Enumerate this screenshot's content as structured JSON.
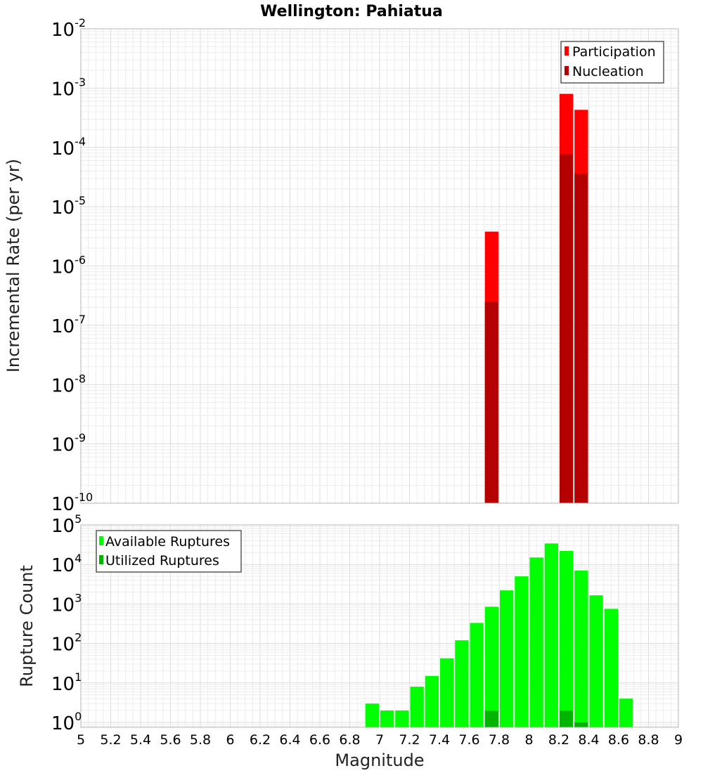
{
  "figure": {
    "title": "Wellington: Pahiatua",
    "xlabel": "Magnitude"
  },
  "chart_data": [
    {
      "type": "bar",
      "panel": "top",
      "ylabel": "Incremental Rate (per yr)",
      "xlim": [
        5,
        9
      ],
      "ylim": [
        1e-10,
        0.01
      ],
      "yscale": "log",
      "grid": true,
      "legend_position": "top-right",
      "bin_width": 0.1,
      "series": [
        {
          "name": "Participation",
          "color": "#ff0000",
          "x": [
            7.75,
            8.25,
            8.35
          ],
          "values": [
            3.8e-06,
            0.0008,
            0.00043
          ]
        },
        {
          "name": "Nucleation",
          "color": "#b40000",
          "x": [
            7.75,
            8.25,
            8.35
          ],
          "values": [
            2.5e-07,
            7.7e-05,
            3.6e-05
          ]
        }
      ],
      "xticks": [
        "5",
        "5.2",
        "5.4",
        "5.6",
        "5.8",
        "6",
        "6.2",
        "6.4",
        "6.6",
        "6.8",
        "7",
        "7.2",
        "7.4",
        "7.6",
        "7.8",
        "8",
        "8.2",
        "8.4",
        "8.6",
        "8.8",
        "9"
      ],
      "yticks": [
        {
          "base": "10",
          "exp": "-2",
          "value": 0.01
        },
        {
          "base": "10",
          "exp": "-3",
          "value": 0.001
        },
        {
          "base": "10",
          "exp": "-4",
          "value": 0.0001
        },
        {
          "base": "10",
          "exp": "-5",
          "value": 1e-05
        },
        {
          "base": "10",
          "exp": "-6",
          "value": 1e-06
        },
        {
          "base": "10",
          "exp": "-7",
          "value": 1e-07
        },
        {
          "base": "10",
          "exp": "-8",
          "value": 1e-08
        },
        {
          "base": "10",
          "exp": "-9",
          "value": 1e-09
        },
        {
          "base": "10",
          "exp": "-10",
          "value": 1e-10
        }
      ]
    },
    {
      "type": "bar",
      "panel": "bottom",
      "ylabel": "Rupture Count",
      "xlabel": "Magnitude",
      "xlim": [
        5,
        9
      ],
      "ylim": [
        0.75,
        100000.0
      ],
      "yscale": "log",
      "grid": true,
      "legend_position": "top-left",
      "bin_width": 0.1,
      "series": [
        {
          "name": "Available Ruptures",
          "color": "#00ff00",
          "x": [
            6.95,
            7.05,
            7.15,
            7.25,
            7.35,
            7.45,
            7.55,
            7.65,
            7.75,
            7.85,
            7.95,
            8.05,
            8.15,
            8.25,
            8.35,
            8.45,
            8.55,
            8.65
          ],
          "values": [
            3,
            2,
            2,
            8,
            15,
            42,
            120,
            330,
            850,
            2200,
            5000,
            15000,
            34000,
            22000,
            7000,
            1650,
            750,
            4
          ]
        },
        {
          "name": "Utilized Ruptures",
          "color": "#00b400",
          "x": [
            7.75,
            8.25,
            8.35
          ],
          "values": [
            2,
            2,
            1
          ]
        }
      ],
      "xticks": [
        "5",
        "5.2",
        "5.4",
        "5.6",
        "5.8",
        "6",
        "6.2",
        "6.4",
        "6.6",
        "6.8",
        "7",
        "7.2",
        "7.4",
        "7.6",
        "7.8",
        "8",
        "8.2",
        "8.4",
        "8.6",
        "8.8",
        "9"
      ],
      "yticks": [
        {
          "base": "10",
          "exp": "5",
          "value": 100000.0
        },
        {
          "base": "10",
          "exp": "4",
          "value": 10000.0
        },
        {
          "base": "10",
          "exp": "3",
          "value": 1000.0
        },
        {
          "base": "10",
          "exp": "2",
          "value": 100.0
        },
        {
          "base": "10",
          "exp": "1",
          "value": 10.0
        },
        {
          "base": "10",
          "exp": "0",
          "value": 1
        }
      ]
    }
  ]
}
